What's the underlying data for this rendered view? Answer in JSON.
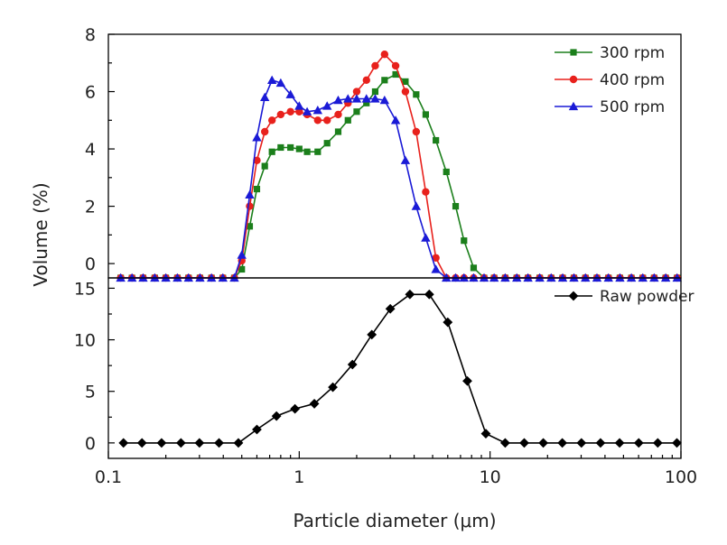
{
  "chart_data": [
    {
      "type": "line",
      "panel": "top",
      "ylim": [
        -0.5,
        8
      ],
      "yticks": [
        0,
        2,
        4,
        6,
        8
      ],
      "x_scale": "log",
      "xlim": [
        0.1,
        100
      ],
      "legend_position": "top-right",
      "series": [
        {
          "name": "300 rpm",
          "color": "#1b7f1b",
          "marker": "square",
          "x": [
            0.116,
            0.133,
            0.152,
            0.175,
            0.2,
            0.23,
            0.263,
            0.302,
            0.347,
            0.398,
            0.457,
            0.5,
            0.55,
            0.6,
            0.66,
            0.72,
            0.8,
            0.9,
            1.0,
            1.1,
            1.25,
            1.4,
            1.6,
            1.8,
            2.0,
            2.25,
            2.5,
            2.8,
            3.2,
            3.6,
            4.1,
            4.6,
            5.2,
            5.9,
            6.6,
            7.3,
            8.2,
            9.3,
            10.5,
            12.0,
            13.8,
            15.8,
            18.2,
            20.9,
            24.0,
            27.5,
            31.6,
            36.3,
            41.7,
            47.9,
            55.0,
            63.1,
            72.4,
            83.2,
            95.5
          ],
          "values": [
            -0.5,
            -0.5,
            -0.5,
            -0.5,
            -0.5,
            -0.5,
            -0.5,
            -0.5,
            -0.5,
            -0.5,
            -0.5,
            -0.2,
            1.3,
            2.6,
            3.4,
            3.9,
            4.05,
            4.05,
            4.0,
            3.9,
            3.9,
            4.2,
            4.6,
            5.0,
            5.3,
            5.6,
            6.0,
            6.4,
            6.6,
            6.35,
            5.9,
            5.2,
            4.3,
            3.2,
            2.0,
            0.8,
            -0.15,
            -0.5,
            -0.5,
            -0.5,
            -0.5,
            -0.5,
            -0.5,
            -0.5,
            -0.5,
            -0.5,
            -0.5,
            -0.5,
            -0.5,
            -0.5,
            -0.5,
            -0.5,
            -0.5,
            -0.5,
            -0.5
          ]
        },
        {
          "name": "400 rpm",
          "color": "#e8211c",
          "marker": "circle",
          "x": [
            0.116,
            0.133,
            0.152,
            0.175,
            0.2,
            0.23,
            0.263,
            0.302,
            0.347,
            0.398,
            0.457,
            0.5,
            0.55,
            0.6,
            0.66,
            0.72,
            0.8,
            0.9,
            1.0,
            1.1,
            1.25,
            1.4,
            1.6,
            1.8,
            2.0,
            2.25,
            2.5,
            2.8,
            3.2,
            3.6,
            4.1,
            4.6,
            5.2,
            5.9,
            6.6,
            7.3,
            8.2,
            9.3,
            10.5,
            12.0,
            13.8,
            15.8,
            18.2,
            20.9,
            24.0,
            27.5,
            31.6,
            36.3,
            41.7,
            47.9,
            55.0,
            63.1,
            72.4,
            83.2,
            95.5
          ],
          "values": [
            -0.5,
            -0.5,
            -0.5,
            -0.5,
            -0.5,
            -0.5,
            -0.5,
            -0.5,
            -0.5,
            -0.5,
            -0.5,
            0.1,
            2.0,
            3.6,
            4.6,
            5.0,
            5.2,
            5.3,
            5.3,
            5.2,
            5.0,
            5.0,
            5.2,
            5.6,
            6.0,
            6.4,
            6.9,
            7.3,
            6.9,
            6.0,
            4.6,
            2.5,
            0.2,
            -0.5,
            -0.5,
            -0.5,
            -0.5,
            -0.5,
            -0.5,
            -0.5,
            -0.5,
            -0.5,
            -0.5,
            -0.5,
            -0.5,
            -0.5,
            -0.5,
            -0.5,
            -0.5,
            -0.5,
            -0.5,
            -0.5,
            -0.5,
            -0.5,
            -0.5
          ]
        },
        {
          "name": "500 rpm",
          "color": "#1a1ad6",
          "marker": "triangle",
          "x": [
            0.116,
            0.133,
            0.152,
            0.175,
            0.2,
            0.23,
            0.263,
            0.302,
            0.347,
            0.398,
            0.457,
            0.5,
            0.55,
            0.6,
            0.66,
            0.72,
            0.8,
            0.9,
            1.0,
            1.1,
            1.25,
            1.4,
            1.6,
            1.8,
            2.0,
            2.25,
            2.5,
            2.8,
            3.2,
            3.6,
            4.1,
            4.6,
            5.2,
            5.9,
            6.6,
            7.3,
            8.2,
            9.3,
            10.5,
            12.0,
            13.8,
            15.8,
            18.2,
            20.9,
            24.0,
            27.5,
            31.6,
            36.3,
            41.7,
            47.9,
            55.0,
            63.1,
            72.4,
            83.2,
            95.5
          ],
          "values": [
            -0.5,
            -0.5,
            -0.5,
            -0.5,
            -0.5,
            -0.5,
            -0.5,
            -0.5,
            -0.5,
            -0.5,
            -0.5,
            0.3,
            2.4,
            4.4,
            5.8,
            6.4,
            6.3,
            5.9,
            5.5,
            5.3,
            5.35,
            5.5,
            5.7,
            5.75,
            5.75,
            5.75,
            5.75,
            5.7,
            5.0,
            3.6,
            2.0,
            0.9,
            -0.2,
            -0.5,
            -0.5,
            -0.5,
            -0.5,
            -0.5,
            -0.5,
            -0.5,
            -0.5,
            -0.5,
            -0.5,
            -0.5,
            -0.5,
            -0.5,
            -0.5,
            -0.5,
            -0.5,
            -0.5,
            -0.5,
            -0.5,
            -0.5,
            -0.5,
            -0.5
          ]
        }
      ]
    },
    {
      "type": "line",
      "panel": "bottom",
      "ylim": [
        -1.5,
        16
      ],
      "yticks": [
        0,
        5,
        10,
        15
      ],
      "x_scale": "log",
      "xlim": [
        0.1,
        100
      ],
      "legend_position": "top-right",
      "series": [
        {
          "name": "Raw powder",
          "color": "#000000",
          "marker": "diamond",
          "x": [
            0.12,
            0.15,
            0.19,
            0.24,
            0.3,
            0.38,
            0.48,
            0.6,
            0.76,
            0.95,
            1.2,
            1.5,
            1.9,
            2.4,
            3.0,
            3.8,
            4.8,
            6.0,
            7.6,
            9.5,
            12.0,
            15.1,
            19.0,
            23.9,
            30.1,
            37.9,
            47.7,
            60.1,
            75.6,
            95.2
          ],
          "values": [
            0,
            0,
            0,
            0,
            0,
            0,
            0,
            1.3,
            2.6,
            3.3,
            3.8,
            5.4,
            7.6,
            10.5,
            13.0,
            14.4,
            14.4,
            11.7,
            6.0,
            0.9,
            0,
            0,
            0,
            0,
            0,
            0,
            0,
            0,
            0,
            0
          ]
        }
      ]
    }
  ],
  "axes": {
    "ylabel": "Volume (%)",
    "xlabel": "Particle diameter (μm)",
    "xticks": [
      "0.1",
      "1",
      "10",
      "100"
    ]
  }
}
